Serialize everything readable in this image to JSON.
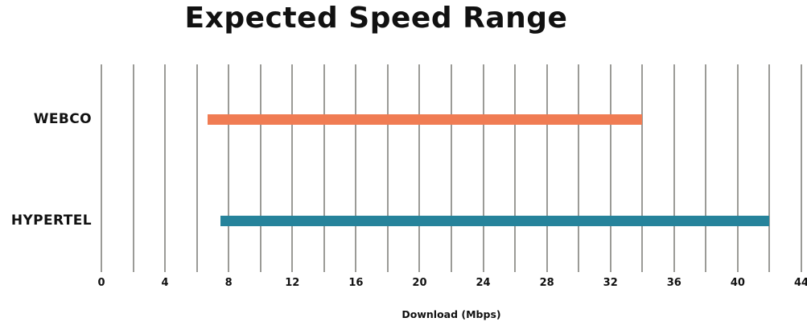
{
  "title": "Expected Speed Range",
  "colors": {
    "background": "#ffffff",
    "text": "#111111",
    "gridline": "#9b9b97",
    "webco_bar": "#f07c53",
    "hypertel_bar": "#26839b"
  },
  "chart_data": {
    "type": "bar",
    "subtype": "horizontal-range-bar",
    "title": "Expected Speed Range",
    "xlabel": "Download (Mbps)",
    "ylabel": "",
    "xlim": [
      0,
      44
    ],
    "x_major_ticks": [
      0,
      4,
      8,
      12,
      16,
      20,
      24,
      28,
      32,
      36,
      40,
      44
    ],
    "x_gridline_step": 2,
    "grid": "vertical-only",
    "legend": "none",
    "categories": [
      "WEBCO",
      "HYPERTEL"
    ],
    "series": [
      {
        "name": "WEBCO",
        "range_min_mbps": 6.7,
        "range_max_mbps": 34,
        "color": "#f07c53"
      },
      {
        "name": "HYPERTEL",
        "range_min_mbps": 7.5,
        "range_max_mbps": 42,
        "color": "#26839b"
      }
    ]
  }
}
